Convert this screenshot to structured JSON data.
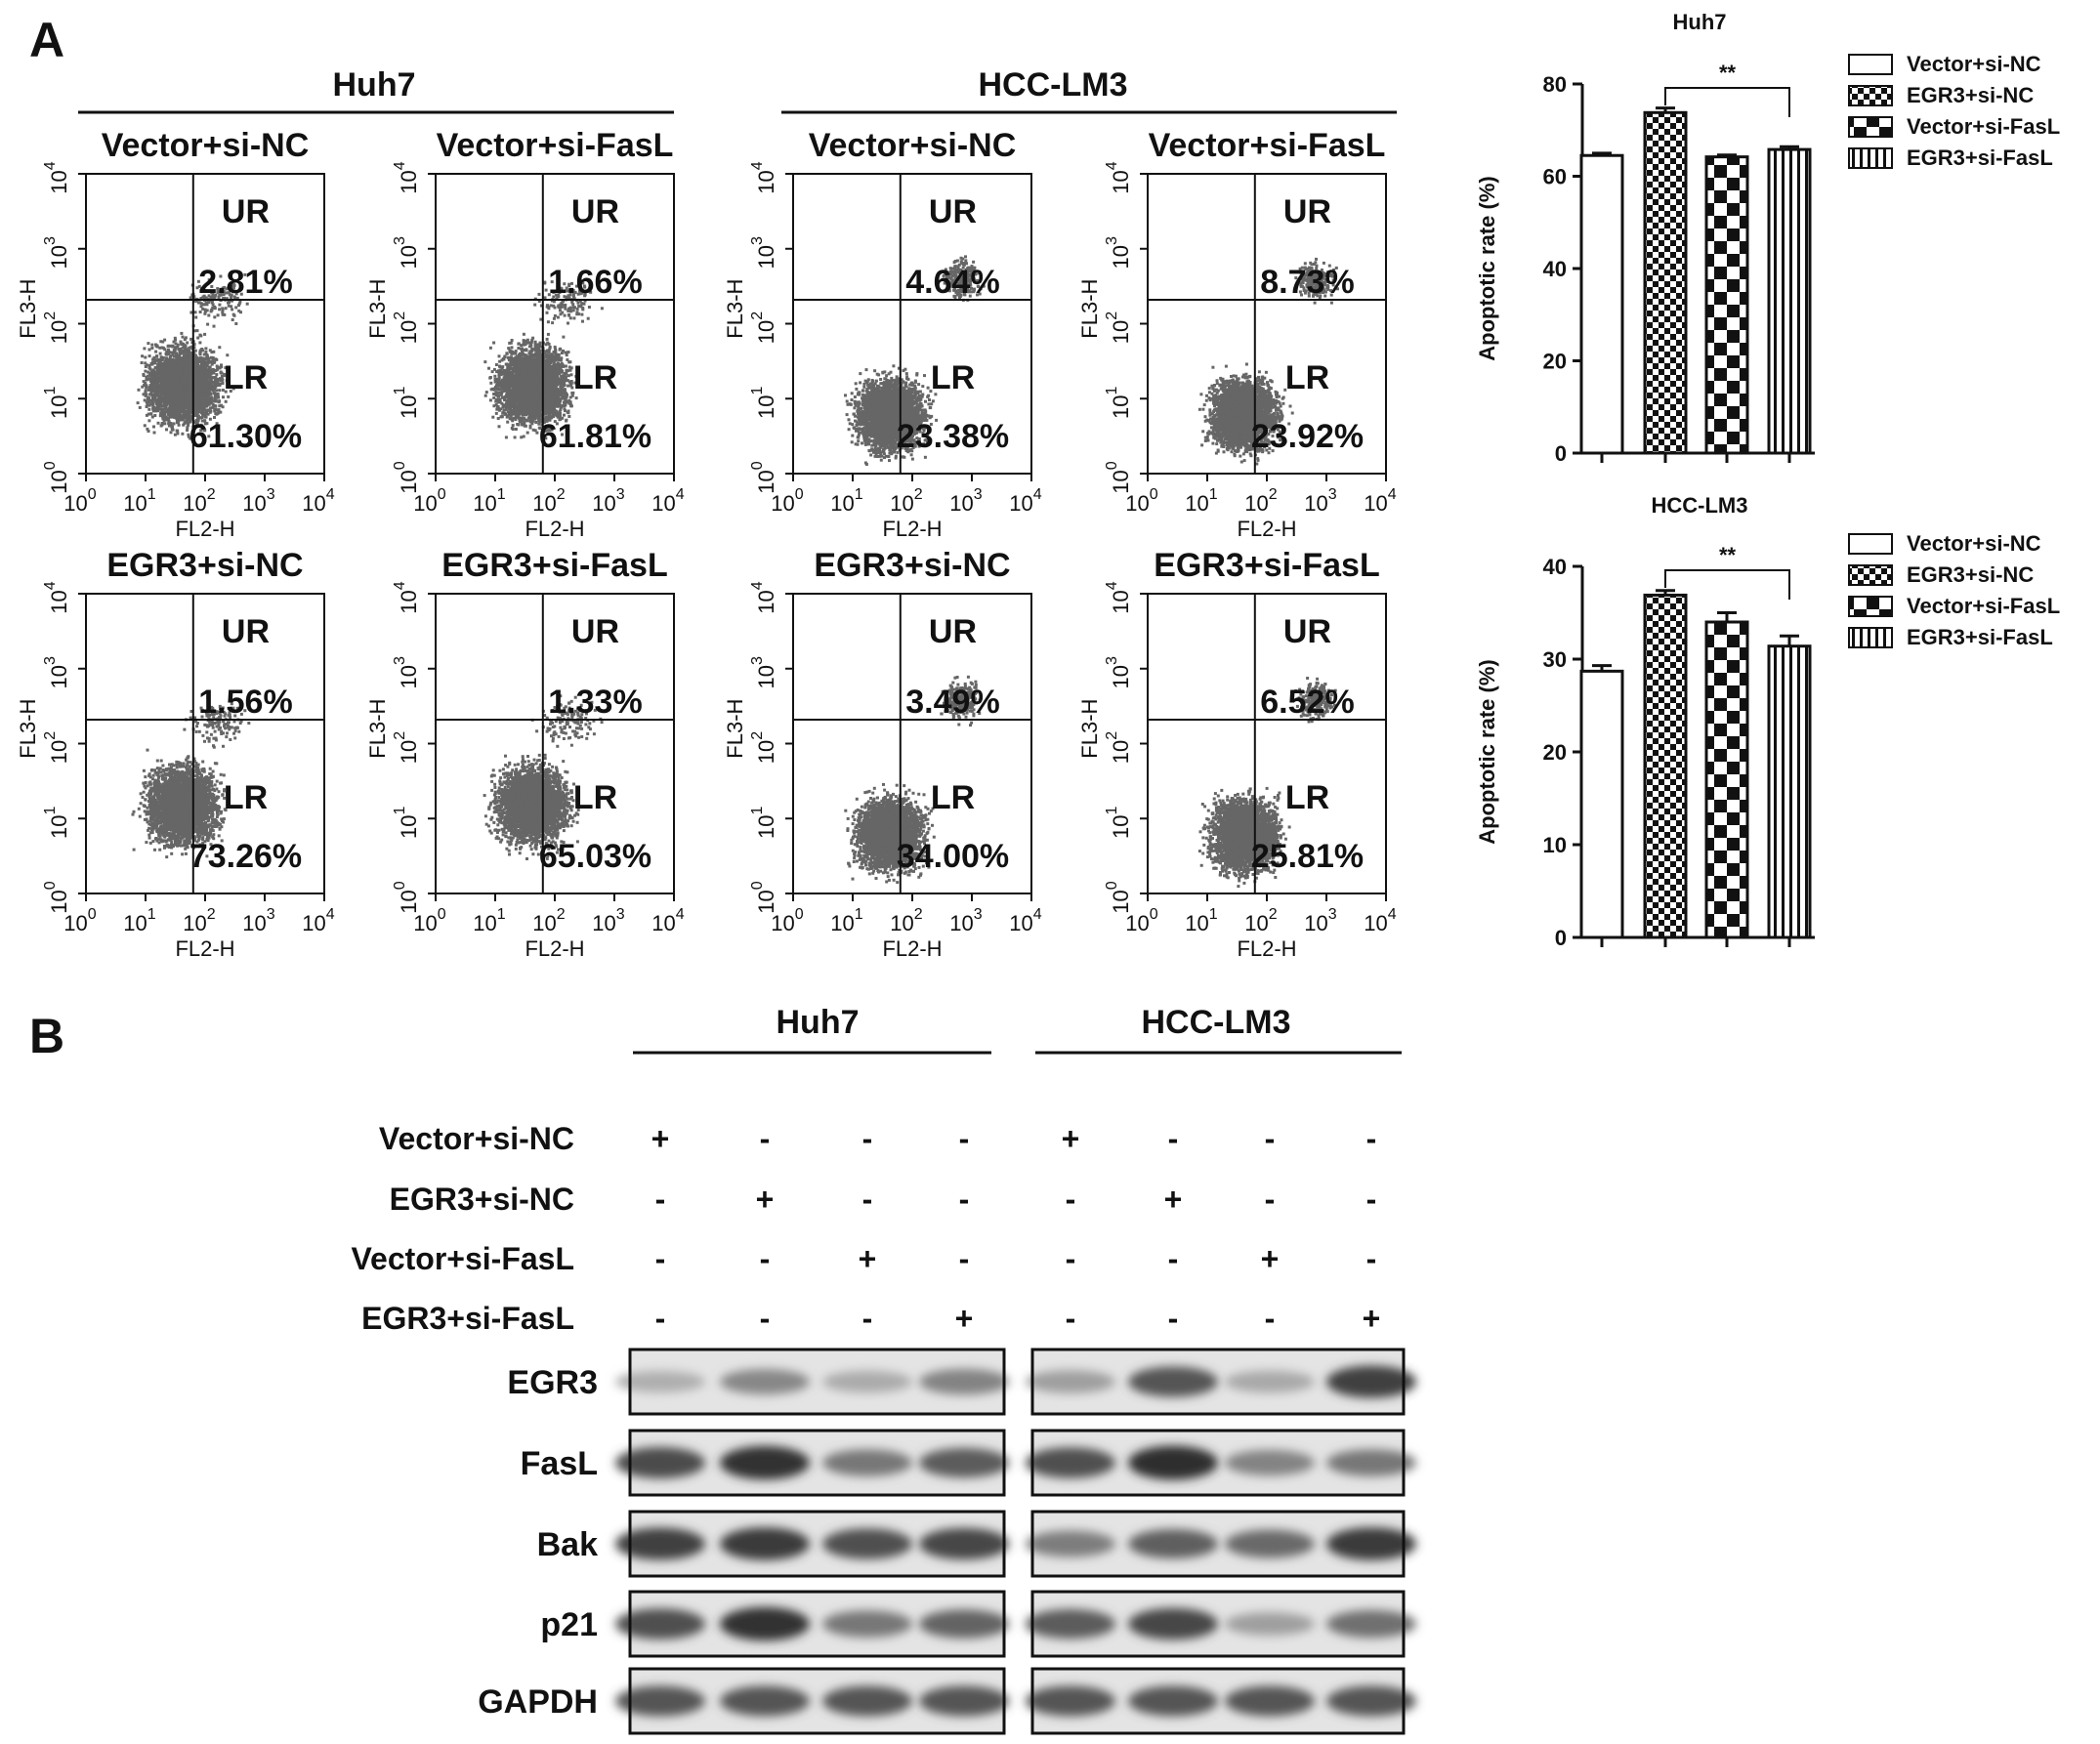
{
  "panel_labels": {
    "a": "A",
    "b": "B"
  },
  "cell_lines": {
    "huh7": "Huh7",
    "hcc": "HCC-LM3"
  },
  "flow": {
    "xlabel": "FL2-H",
    "ylabel": "FL3-H",
    "tick_base": "10",
    "tick_exps": [
      "0",
      "1",
      "2",
      "3",
      "4"
    ],
    "quadrant_labels": {
      "ur": "UR",
      "lr": "LR"
    },
    "plots": [
      {
        "cell_line": "Huh7",
        "title": "Vector+si-NC",
        "ur": "2.81%",
        "lr": "61.30%"
      },
      {
        "cell_line": "Huh7",
        "title": "Vector+si-FasL",
        "ur": "1.66%",
        "lr": "61.81%"
      },
      {
        "cell_line": "HCC-LM3",
        "title": "Vector+si-NC",
        "ur": "4.64%",
        "lr": "23.38%"
      },
      {
        "cell_line": "HCC-LM3",
        "title": "Vector+si-FasL",
        "ur": "8.73%",
        "lr": "23.92%"
      },
      {
        "cell_line": "Huh7",
        "title": "EGR3+si-NC",
        "ur": "1.56%",
        "lr": "73.26%"
      },
      {
        "cell_line": "Huh7",
        "title": "EGR3+si-FasL",
        "ur": "1.33%",
        "lr": "65.03%"
      },
      {
        "cell_line": "HCC-LM3",
        "title": "EGR3+si-NC",
        "ur": "3.49%",
        "lr": "34.00%"
      },
      {
        "cell_line": "HCC-LM3",
        "title": "EGR3+si-FasL",
        "ur": "6.52%",
        "lr": "25.81%"
      }
    ]
  },
  "chart_data": [
    {
      "type": "bar",
      "title": "Huh7",
      "ylabel": "Apoptotic rate (%)",
      "xlabel": "",
      "ylim": [
        0,
        80
      ],
      "yticks": [
        0,
        20,
        40,
        60,
        80
      ],
      "categories": [
        "Vector+si-NC",
        "EGR3+si-NC",
        "Vector+si-FasL",
        "EGR3+si-FasL"
      ],
      "values": [
        64.5,
        73.8,
        64.2,
        65.8
      ],
      "errors": [
        0.5,
        1.0,
        0.4,
        0.6
      ],
      "patterns": [
        "open",
        "checker-fine",
        "checker-coarse",
        "stripes"
      ],
      "significance": {
        "from": 1,
        "to": 3,
        "label": "**"
      },
      "legend_position": "right"
    },
    {
      "type": "bar",
      "title": "HCC-LM3",
      "ylabel": "Apoptotic rate (%)",
      "xlabel": "",
      "ylim": [
        0,
        40
      ],
      "yticks": [
        0,
        10,
        20,
        30,
        40
      ],
      "categories": [
        "Vector+si-NC",
        "EGR3+si-NC",
        "Vector+si-FasL",
        "EGR3+si-FasL"
      ],
      "values": [
        28.7,
        36.9,
        34.0,
        31.4
      ],
      "errors": [
        0.6,
        0.5,
        1.0,
        1.1
      ],
      "patterns": [
        "open",
        "checker-fine",
        "checker-coarse",
        "stripes"
      ],
      "significance": {
        "from": 1,
        "to": 3,
        "label": "**"
      },
      "legend_position": "right"
    }
  ],
  "western": {
    "conditions": [
      "Vector+si-NC",
      "EGR3+si-NC",
      "Vector+si-FasL",
      "EGR3+si-FasL"
    ],
    "markers": [
      [
        "+",
        "-",
        "-",
        "-",
        "+",
        "-",
        "-",
        "-"
      ],
      [
        "-",
        "+",
        "-",
        "-",
        "-",
        "+",
        "-",
        "-"
      ],
      [
        "-",
        "-",
        "+",
        "-",
        "-",
        "-",
        "+",
        "-"
      ],
      [
        "-",
        "-",
        "-",
        "+",
        "-",
        "-",
        "-",
        "+"
      ]
    ],
    "proteins": [
      "EGR3",
      "FasL",
      "Bak",
      "p21",
      "GAPDH"
    ],
    "band_intensity": [
      [
        0.3,
        0.5,
        0.32,
        0.52,
        0.38,
        0.75,
        0.33,
        0.85
      ],
      [
        0.8,
        0.92,
        0.58,
        0.72,
        0.78,
        0.95,
        0.52,
        0.58
      ],
      [
        0.85,
        0.88,
        0.78,
        0.82,
        0.55,
        0.7,
        0.65,
        0.88
      ],
      [
        0.78,
        0.92,
        0.58,
        0.68,
        0.72,
        0.82,
        0.38,
        0.62
      ],
      [
        0.75,
        0.75,
        0.75,
        0.75,
        0.75,
        0.75,
        0.75,
        0.75
      ]
    ]
  }
}
